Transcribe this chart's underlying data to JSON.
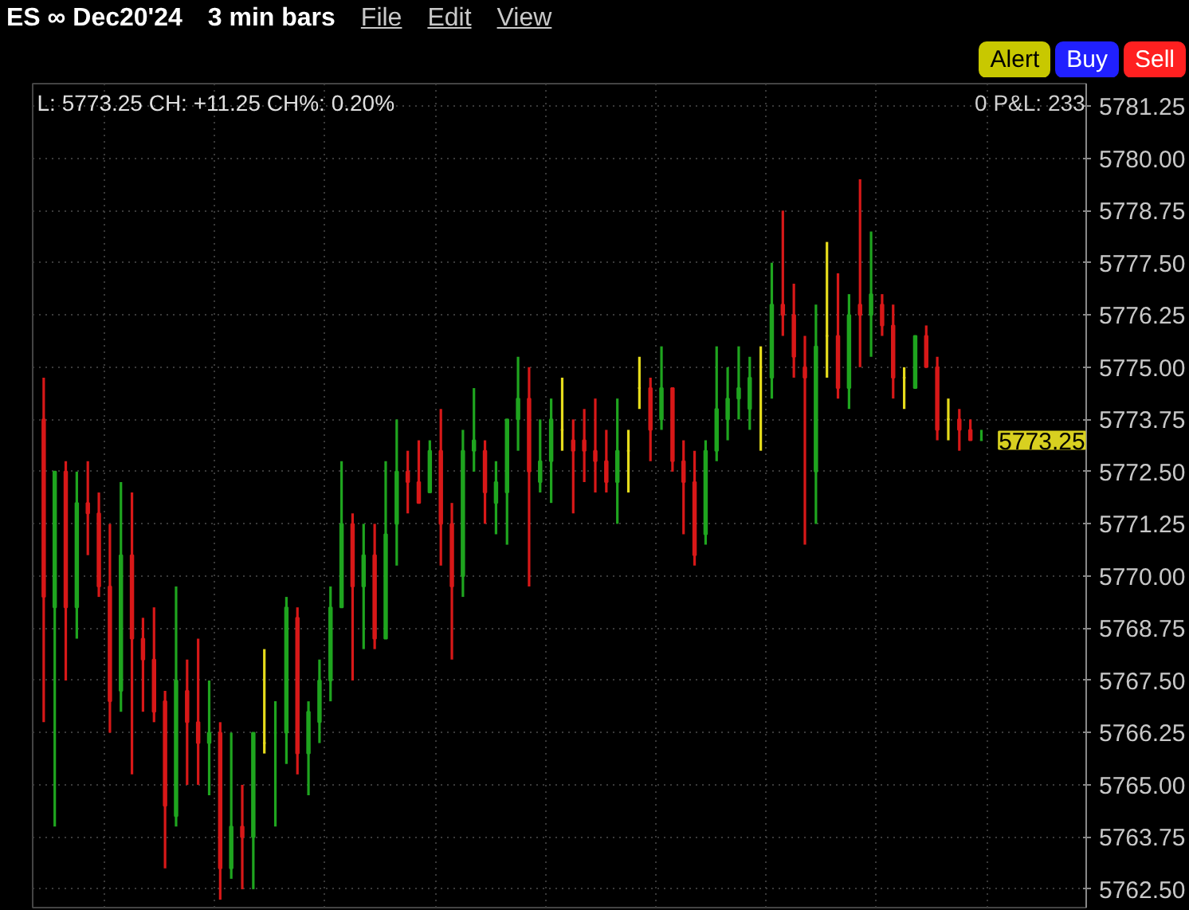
{
  "chart_data": {
    "type": "candlestick",
    "title": "ES ∞ Dec20'24",
    "subtitle": "3 min bars",
    "categories": [
      null,
      null,
      null,
      null,
      null,
      null,
      null,
      null,
      null,
      null,
      null,
      null,
      null,
      null,
      null,
      null,
      null,
      null,
      null,
      null,
      null,
      null,
      null,
      null,
      null,
      null,
      null,
      null,
      null,
      null,
      null,
      null,
      null,
      null,
      null,
      null,
      null,
      null,
      null,
      null,
      null,
      null,
      null,
      null,
      null,
      null,
      null,
      null,
      null,
      null,
      null,
      null,
      null,
      null,
      null,
      null,
      null,
      null,
      null,
      null,
      null,
      null,
      null,
      null,
      null,
      null,
      null,
      null,
      null,
      null,
      null,
      null,
      null,
      null,
      null,
      null,
      null,
      null,
      null,
      null,
      null,
      null,
      null,
      null,
      null,
      null
    ],
    "ohlc": [
      [
        5773.75,
        5774.75,
        5766.5,
        5769.5
      ],
      [
        5769.25,
        5772.5,
        5764.0,
        5772.5
      ],
      [
        5772.5,
        5772.75,
        5767.5,
        5769.25
      ],
      [
        5769.25,
        5772.5,
        5768.5,
        5771.75
      ],
      [
        5771.75,
        5772.75,
        5770.5,
        5771.5
      ],
      [
        5771.5,
        5772.0,
        5769.5,
        5769.75
      ],
      [
        5769.75,
        5771.25,
        5766.25,
        5767.0
      ],
      [
        5767.25,
        5772.25,
        5766.75,
        5770.5
      ],
      [
        5770.5,
        5772.0,
        5765.25,
        5768.5
      ],
      [
        5768.5,
        5769.0,
        5766.75,
        5768.0
      ],
      [
        5768.0,
        5769.25,
        5766.5,
        5766.75
      ],
      [
        5767.0,
        5767.25,
        5763.0,
        5764.5
      ],
      [
        5764.25,
        5769.75,
        5764.0,
        5767.5
      ],
      [
        5767.25,
        5768.0,
        5765.0,
        5766.5
      ],
      [
        5766.5,
        5768.5,
        5765.0,
        5766.0
      ],
      [
        5766.0,
        5767.5,
        5764.75,
        5766.25
      ],
      [
        5766.25,
        5766.5,
        5762.25,
        5763.0
      ],
      [
        5763.0,
        5766.25,
        5762.75,
        5764.0
      ],
      [
        5764.0,
        5765.0,
        5762.5,
        5763.75
      ],
      [
        5763.75,
        5766.25,
        5762.5,
        5766.25
      ],
      [
        5766.0,
        5768.25,
        5765.75,
        5766.0
      ],
      [
        5766.25,
        5767.0,
        5764.0,
        5766.25
      ],
      [
        5766.25,
        5769.5,
        5765.5,
        5769.25
      ],
      [
        5769.0,
        5769.25,
        5765.25,
        5765.75
      ],
      [
        5765.75,
        5767.0,
        5764.75,
        5766.75
      ],
      [
        5766.5,
        5768.0,
        5766.0,
        5767.5
      ],
      [
        5767.5,
        5769.75,
        5767.0,
        5769.25
      ],
      [
        5769.25,
        5772.75,
        5769.25,
        5771.25
      ],
      [
        5771.25,
        5771.5,
        5767.5,
        5769.75
      ],
      [
        5769.75,
        5771.25,
        5768.25,
        5770.5
      ],
      [
        5770.5,
        5771.25,
        5768.25,
        5768.5
      ],
      [
        5768.5,
        5772.75,
        5768.5,
        5771.0
      ],
      [
        5771.25,
        5773.75,
        5770.25,
        5772.5
      ],
      [
        5772.5,
        5773.0,
        5771.5,
        5772.25
      ],
      [
        5772.25,
        5773.25,
        5771.75,
        5771.75
      ],
      [
        5772.0,
        5773.25,
        5772.0,
        5773.0
      ],
      [
        5773.0,
        5774.0,
        5770.25,
        5771.25
      ],
      [
        5771.25,
        5771.75,
        5768.0,
        5769.75
      ],
      [
        5770.0,
        5773.5,
        5769.5,
        5773.0
      ],
      [
        5773.0,
        5774.5,
        5772.5,
        5773.25
      ],
      [
        5773.0,
        5773.25,
        5771.25,
        5772.0
      ],
      [
        5771.75,
        5772.75,
        5771.0,
        5772.25
      ],
      [
        5772.0,
        5773.75,
        5770.75,
        5773.75
      ],
      [
        5773.75,
        5775.25,
        5773.0,
        5774.25
      ],
      [
        5774.25,
        5775.0,
        5769.75,
        5772.5
      ],
      [
        5772.25,
        5773.75,
        5772.0,
        5772.75
      ],
      [
        5772.75,
        5774.25,
        5771.75,
        5773.75
      ],
      [
        5773.5,
        5774.75,
        5773.0,
        5773.5
      ],
      [
        5773.25,
        5773.75,
        5771.5,
        5773.0
      ],
      [
        5773.25,
        5774.0,
        5772.25,
        5773.0
      ],
      [
        5773.0,
        5774.25,
        5772.0,
        5772.75
      ],
      [
        5772.75,
        5773.5,
        5772.0,
        5772.25
      ],
      [
        5772.25,
        5774.25,
        5771.25,
        5773.0
      ],
      [
        5773.0,
        5773.5,
        5772.0,
        5773.0
      ],
      [
        5774.5,
        5775.25,
        5774.0,
        5774.5
      ],
      [
        5774.5,
        5774.75,
        5772.75,
        5773.5
      ],
      [
        5773.75,
        5775.5,
        5773.5,
        5774.5
      ],
      [
        5774.5,
        5774.5,
        5772.5,
        5772.75
      ],
      [
        5772.75,
        5773.25,
        5771.0,
        5772.25
      ],
      [
        5772.25,
        5773.0,
        5770.25,
        5770.5
      ],
      [
        5771.0,
        5773.25,
        5770.75,
        5773.0
      ],
      [
        5773.0,
        5775.5,
        5772.75,
        5774.0
      ],
      [
        5773.75,
        5775.0,
        5773.25,
        5774.25
      ],
      [
        5774.25,
        5775.5,
        5773.75,
        5774.5
      ],
      [
        5774.0,
        5775.25,
        5773.5,
        5774.75
      ],
      [
        5775.0,
        5775.5,
        5773.0,
        5775.0
      ],
      [
        5774.75,
        5777.5,
        5774.25,
        5776.5
      ],
      [
        5776.5,
        5778.75,
        5775.75,
        5776.25
      ],
      [
        5776.25,
        5777.0,
        5774.75,
        5775.25
      ],
      [
        5775.0,
        5775.75,
        5770.75,
        5774.75
      ],
      [
        5772.5,
        5776.5,
        5771.25,
        5775.5
      ],
      [
        5775.75,
        5778.0,
        5774.75,
        5775.75
      ],
      [
        5775.75,
        5777.25,
        5774.25,
        5774.5
      ],
      [
        5774.5,
        5776.75,
        5774.0,
        5776.25
      ],
      [
        5776.5,
        5779.5,
        5775.0,
        5776.25
      ],
      [
        5776.25,
        5778.25,
        5775.25,
        5776.75
      ],
      [
        5776.5,
        5776.75,
        5775.75,
        5776.0
      ],
      [
        5776.0,
        5776.5,
        5774.25,
        5774.75
      ],
      [
        5774.75,
        5775.0,
        5774.0,
        5774.75
      ],
      [
        5774.5,
        5775.75,
        5774.5,
        5775.75
      ],
      [
        5775.75,
        5776.0,
        5775.0,
        5775.0
      ],
      [
        5775.0,
        5775.25,
        5773.25,
        5773.5
      ],
      [
        5773.75,
        5774.25,
        5773.25,
        5773.75
      ],
      [
        5773.75,
        5774.0,
        5773.0,
        5773.5
      ],
      [
        5773.5,
        5773.75,
        5773.25,
        5773.25
      ],
      [
        5773.25,
        5773.5,
        5773.25,
        5773.25
      ]
    ],
    "colors": [
      "#d81818",
      "#1fa51f",
      "#d81818",
      "#1fa51f",
      "#d81818",
      "#d81818",
      "#d81818",
      "#1fa51f",
      "#d81818",
      "#d81818",
      "#d81818",
      "#d81818",
      "#1fa51f",
      "#d81818",
      "#d81818",
      "#1fa51f",
      "#d81818",
      "#1fa51f",
      "#d81818",
      "#1fa51f",
      "#e6dc1c",
      "#1fa51f",
      "#1fa51f",
      "#d81818",
      "#1fa51f",
      "#1fa51f",
      "#1fa51f",
      "#1fa51f",
      "#d81818",
      "#1fa51f",
      "#d81818",
      "#1fa51f",
      "#1fa51f",
      "#d81818",
      "#d81818",
      "#1fa51f",
      "#d81818",
      "#d81818",
      "#1fa51f",
      "#1fa51f",
      "#d81818",
      "#1fa51f",
      "#1fa51f",
      "#1fa51f",
      "#d81818",
      "#1fa51f",
      "#1fa51f",
      "#e6dc1c",
      "#d81818",
      "#d81818",
      "#d81818",
      "#d81818",
      "#1fa51f",
      "#e6dc1c",
      "#e6dc1c",
      "#d81818",
      "#1fa51f",
      "#d81818",
      "#d81818",
      "#d81818",
      "#1fa51f",
      "#1fa51f",
      "#1fa51f",
      "#1fa51f",
      "#1fa51f",
      "#e6dc1c",
      "#1fa51f",
      "#d81818",
      "#d81818",
      "#d81818",
      "#1fa51f",
      "#e6dc1c",
      "#d81818",
      "#1fa51f",
      "#d81818",
      "#1fa51f",
      "#d81818",
      "#d81818",
      "#e6dc1c",
      "#1fa51f",
      "#d81818",
      "#d81818",
      "#e6dc1c",
      "#d81818",
      "#d81818",
      "#1fa51f"
    ],
    "ylim": [
      5762.06,
      5781.79
    ],
    "yticks": [
      {
        "value": 5762.5,
        "label": "5762.50"
      },
      {
        "value": 5763.75,
        "label": "5763.75"
      },
      {
        "value": 5765.0,
        "label": "5765.00"
      },
      {
        "value": 5766.25,
        "label": "5766.25"
      },
      {
        "value": 5767.5,
        "label": "5767.50"
      },
      {
        "value": 5768.75,
        "label": "5768.75"
      },
      {
        "value": 5770.0,
        "label": "5770.00"
      },
      {
        "value": 5771.25,
        "label": "5771.25"
      },
      {
        "value": 5772.5,
        "label": "5772.50"
      },
      {
        "value": 5773.75,
        "label": "5773.75"
      },
      {
        "value": 5775.0,
        "label": "5775.00"
      },
      {
        "value": 5776.25,
        "label": "5776.25"
      },
      {
        "value": 5777.5,
        "label": "5777.50"
      },
      {
        "value": 5778.75,
        "label": "5778.75"
      },
      {
        "value": 5780.0,
        "label": "5780.00"
      },
      {
        "value": 5781.25,
        "label": "5781.25"
      }
    ],
    "grid": true,
    "annotations": [
      "File",
      "Edit",
      "View",
      "Alert",
      "Buy",
      "Sell",
      "L: 5773.25 CH: +11.25 CH%: 0.20%",
      "0 P&L: 233",
      "5773.25"
    ]
  }
}
